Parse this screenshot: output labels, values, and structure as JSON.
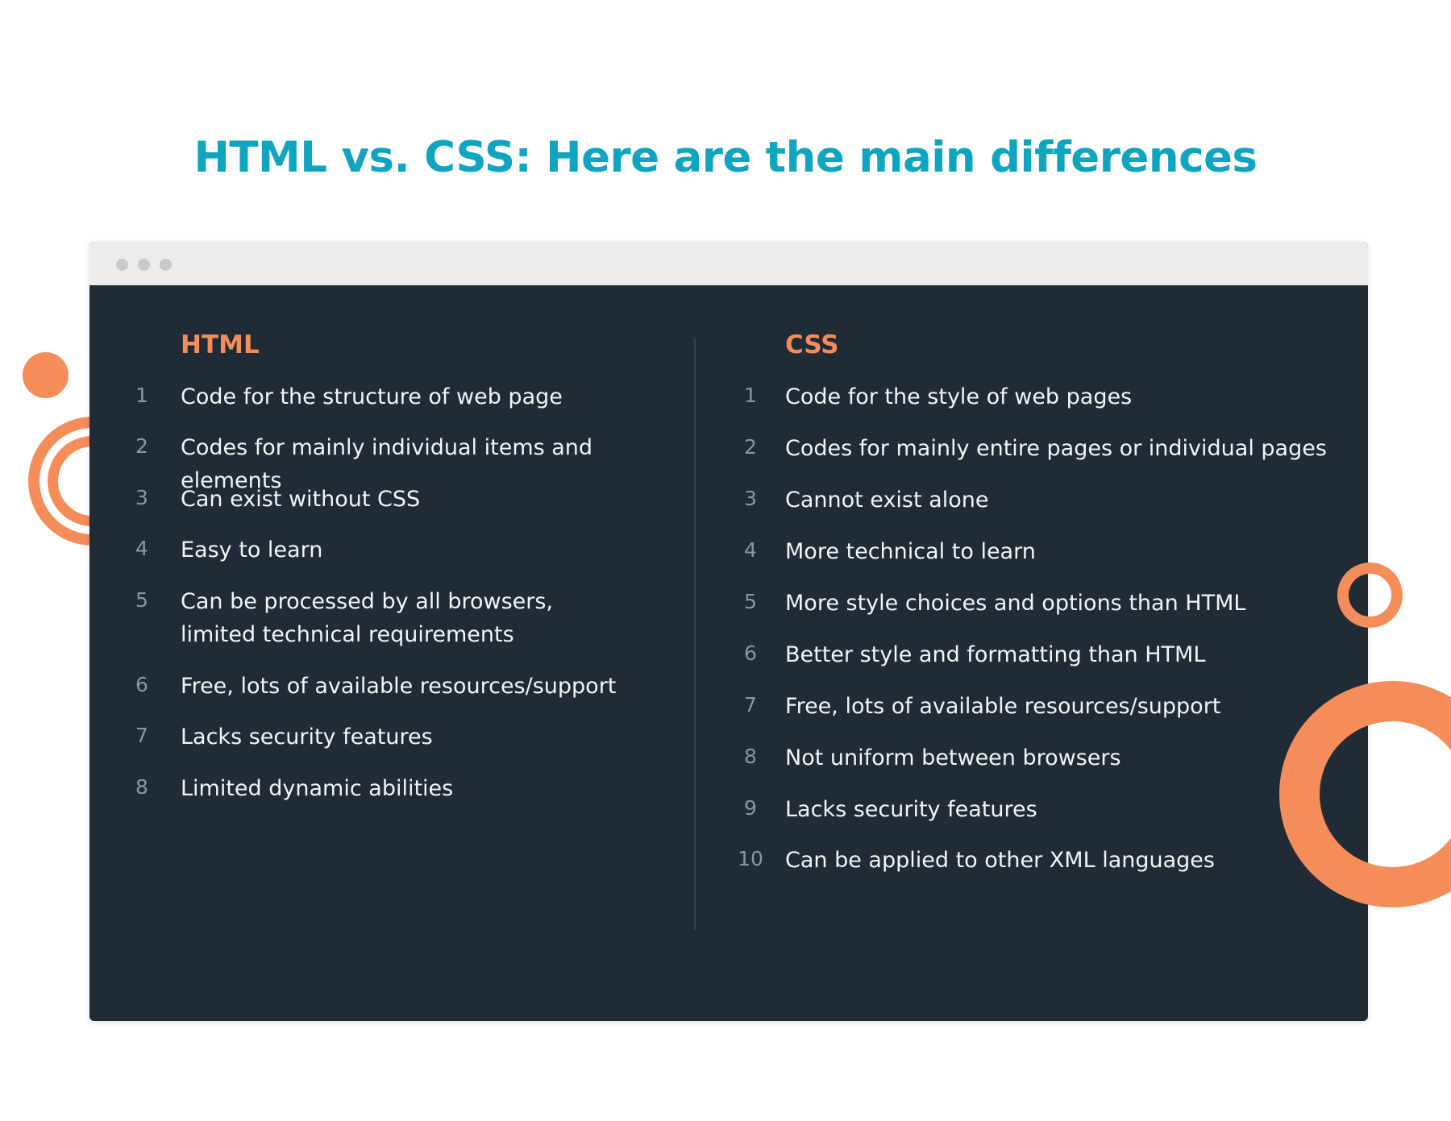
{
  "page": {
    "title": "HTML vs. CSS: Here are the main differences"
  },
  "colors": {
    "title": "#0fa5c1",
    "accent": "#f58d5b",
    "panel_bg": "#212b36",
    "titlebar_bg": "#ececec"
  },
  "window": {
    "controls": [
      "dot",
      "dot",
      "dot"
    ]
  },
  "html_column": {
    "heading": "HTML",
    "items": [
      {
        "num": "1",
        "text": "Code for the structure of web page"
      },
      {
        "num": "2",
        "text": "Codes for mainly individual items and elements"
      },
      {
        "num": "3",
        "text": "Can exist without CSS"
      },
      {
        "num": "4",
        "text": "Easy to learn"
      },
      {
        "num": "5",
        "text": "Can be processed by all browsers,\nlimited technical requirements"
      },
      {
        "num": "6",
        "text": "Free, lots of available resources/support"
      },
      {
        "num": "7",
        "text": "Lacks security features"
      },
      {
        "num": "8",
        "text": "Limited dynamic abilities"
      }
    ]
  },
  "css_column": {
    "heading": "CSS",
    "items": [
      {
        "num": "1",
        "text": "Code for the style of web pages"
      },
      {
        "num": "2",
        "text": "Codes for mainly entire pages or individual pages"
      },
      {
        "num": "3",
        "text": "Cannot exist alone"
      },
      {
        "num": "4",
        "text": "More technical to learn"
      },
      {
        "num": "5",
        "text": "More style choices and options than HTML"
      },
      {
        "num": "6",
        "text": "Better style and formatting than HTML"
      },
      {
        "num": "7",
        "text": "Free, lots of available resources/support"
      },
      {
        "num": "8",
        "text": "Not uniform between browsers"
      },
      {
        "num": "9",
        "text": "Lacks security features"
      },
      {
        "num": "10",
        "text": "Can be applied to other XML languages"
      }
    ]
  }
}
